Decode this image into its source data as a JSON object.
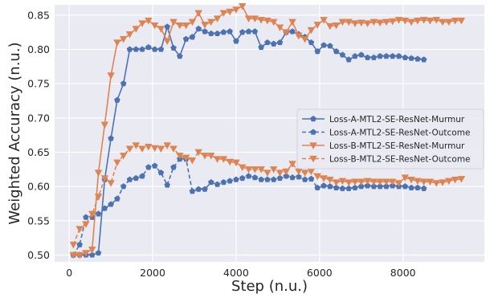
{
  "chart_data": {
    "type": "line",
    "title": "",
    "xlabel": "Step (n.u.)",
    "ylabel": "Weighted Accuracy (n.u.)",
    "xlim": [
      -350,
      9950
    ],
    "ylim": [
      0.49,
      0.865
    ],
    "xticks": [
      0,
      2000,
      4000,
      6000,
      8000
    ],
    "yticks": [
      0.5,
      0.55,
      0.6,
      0.65,
      0.7,
      0.75,
      0.8,
      0.85
    ],
    "grid": true,
    "background": "#eaeaf2",
    "legend_position": "center-right",
    "series": [
      {
        "name": "Loss-A-MTL2-SE-ResNet-Murmur",
        "color": "#4c72b0",
        "linestyle": "solid",
        "marker": "pentagon",
        "x": [
          100,
          250,
          400,
          550,
          700,
          850,
          1000,
          1150,
          1300,
          1450,
          1600,
          1750,
          1900,
          2050,
          2200,
          2350,
          2500,
          2650,
          2800,
          2950,
          3100,
          3250,
          3400,
          3550,
          3700,
          3850,
          4000,
          4150,
          4300,
          4450,
          4600,
          4750,
          4900,
          5050,
          5200,
          5350,
          5500,
          5650,
          5800,
          5950,
          6100,
          6250,
          6400,
          6550,
          6700,
          6850,
          7000,
          7150,
          7300,
          7450,
          7600,
          7750,
          7900,
          8050,
          8200,
          8350,
          8500
        ],
        "y": [
          0.5,
          0.5,
          0.5,
          0.5,
          0.503,
          0.61,
          0.67,
          0.726,
          0.75,
          0.8,
          0.8,
          0.8,
          0.803,
          0.8,
          0.8,
          0.833,
          0.802,
          0.79,
          0.815,
          0.818,
          0.83,
          0.826,
          0.823,
          0.823,
          0.825,
          0.826,
          0.812,
          0.825,
          0.826,
          0.826,
          0.803,
          0.81,
          0.808,
          0.81,
          0.825,
          0.826,
          0.822,
          0.818,
          0.81,
          0.797,
          0.806,
          0.805,
          0.797,
          0.792,
          0.785,
          0.79,
          0.792,
          0.788,
          0.788,
          0.79,
          0.79,
          0.79,
          0.79,
          0.788,
          0.787,
          0.786,
          0.785
        ]
      },
      {
        "name": "Loss-A-MTL2-SE-ResNet-Outcome",
        "color": "#4c72b0",
        "linestyle": "dashed",
        "marker": "pentagon",
        "x": [
          100,
          250,
          400,
          550,
          700,
          850,
          1000,
          1150,
          1300,
          1450,
          1600,
          1750,
          1900,
          2050,
          2200,
          2350,
          2500,
          2650,
          2800,
          2950,
          3100,
          3250,
          3400,
          3550,
          3700,
          3850,
          4000,
          4150,
          4300,
          4450,
          4600,
          4750,
          4900,
          5050,
          5200,
          5350,
          5500,
          5650,
          5800,
          5950,
          6100,
          6250,
          6400,
          6550,
          6700,
          6850,
          7000,
          7150,
          7300,
          7450,
          7600,
          7750,
          7900,
          8050,
          8200,
          8350,
          8500
        ],
        "y": [
          0.5,
          0.515,
          0.555,
          0.555,
          0.56,
          0.568,
          0.574,
          0.582,
          0.6,
          0.61,
          0.612,
          0.615,
          0.628,
          0.63,
          0.62,
          0.602,
          0.628,
          0.64,
          0.64,
          0.593,
          0.596,
          0.596,
          0.606,
          0.603,
          0.606,
          0.608,
          0.61,
          0.612,
          0.615,
          0.613,
          0.61,
          0.61,
          0.61,
          0.612,
          0.615,
          0.613,
          0.614,
          0.61,
          0.611,
          0.598,
          0.601,
          0.6,
          0.598,
          0.597,
          0.597,
          0.598,
          0.6,
          0.601,
          0.6,
          0.6,
          0.6,
          0.601,
          0.6,
          0.6,
          0.598,
          0.598,
          0.597
        ]
      },
      {
        "name": "Loss-B-MTL2-SE-ResNet-Murmur",
        "color": "#dd8452",
        "linestyle": "solid",
        "marker": "triangle-down",
        "x": [
          100,
          250,
          400,
          550,
          700,
          850,
          1000,
          1150,
          1300,
          1450,
          1600,
          1750,
          1900,
          2050,
          2200,
          2350,
          2500,
          2650,
          2800,
          2950,
          3100,
          3250,
          3400,
          3550,
          3700,
          3850,
          4000,
          4150,
          4300,
          4450,
          4600,
          4750,
          4900,
          5050,
          5200,
          5350,
          5500,
          5650,
          5800,
          5950,
          6100,
          6250,
          6400,
          6550,
          6700,
          6850,
          7000,
          7150,
          7300,
          7450,
          7600,
          7750,
          7900,
          8050,
          8200,
          8350,
          8500,
          8650,
          8800,
          8950,
          9100,
          9250,
          9400
        ],
        "y": [
          0.5,
          0.5,
          0.503,
          0.508,
          0.62,
          0.69,
          0.762,
          0.81,
          0.815,
          0.822,
          0.83,
          0.838,
          0.842,
          0.835,
          0.83,
          0.812,
          0.84,
          0.835,
          0.835,
          0.84,
          0.853,
          0.836,
          0.84,
          0.845,
          0.853,
          0.855,
          0.858,
          0.863,
          0.845,
          0.845,
          0.843,
          0.842,
          0.84,
          0.832,
          0.825,
          0.84,
          0.82,
          0.815,
          0.828,
          0.836,
          0.843,
          0.834,
          0.835,
          0.84,
          0.84,
          0.838,
          0.839,
          0.838,
          0.84,
          0.839,
          0.84,
          0.841,
          0.843,
          0.842,
          0.84,
          0.842,
          0.843,
          0.842,
          0.843,
          0.84,
          0.84,
          0.842,
          0.842
        ]
      },
      {
        "name": "Loss-B-MTL2-SE-ResNet-Outcome",
        "color": "#dd8452",
        "linestyle": "dashed",
        "marker": "triangle-down",
        "x": [
          100,
          250,
          400,
          550,
          700,
          850,
          1000,
          1150,
          1300,
          1450,
          1600,
          1750,
          1900,
          2050,
          2200,
          2350,
          2500,
          2650,
          2800,
          2950,
          3100,
          3250,
          3400,
          3550,
          3700,
          3850,
          4000,
          4150,
          4300,
          4450,
          4600,
          4750,
          4900,
          5050,
          5200,
          5350,
          5500,
          5650,
          5800,
          5950,
          6100,
          6250,
          6400,
          6550,
          6700,
          6850,
          7000,
          7150,
          7300,
          7450,
          7600,
          7750,
          7900,
          8050,
          8200,
          8350,
          8500,
          8650,
          8800,
          8950,
          9100,
          9250,
          9400
        ],
        "y": [
          0.515,
          0.538,
          0.545,
          0.56,
          0.585,
          0.612,
          0.605,
          0.635,
          0.645,
          0.655,
          0.66,
          0.655,
          0.658,
          0.656,
          0.655,
          0.66,
          0.655,
          0.645,
          0.642,
          0.638,
          0.65,
          0.645,
          0.645,
          0.64,
          0.64,
          0.636,
          0.635,
          0.628,
          0.625,
          0.625,
          0.625,
          0.62,
          0.625,
          0.62,
          0.622,
          0.633,
          0.622,
          0.62,
          0.622,
          0.615,
          0.612,
          0.61,
          0.606,
          0.608,
          0.606,
          0.607,
          0.607,
          0.608,
          0.607,
          0.607,
          0.607,
          0.607,
          0.605,
          0.613,
          0.61,
          0.608,
          0.607,
          0.607,
          0.605,
          0.606,
          0.608,
          0.61,
          0.611
        ]
      }
    ]
  }
}
